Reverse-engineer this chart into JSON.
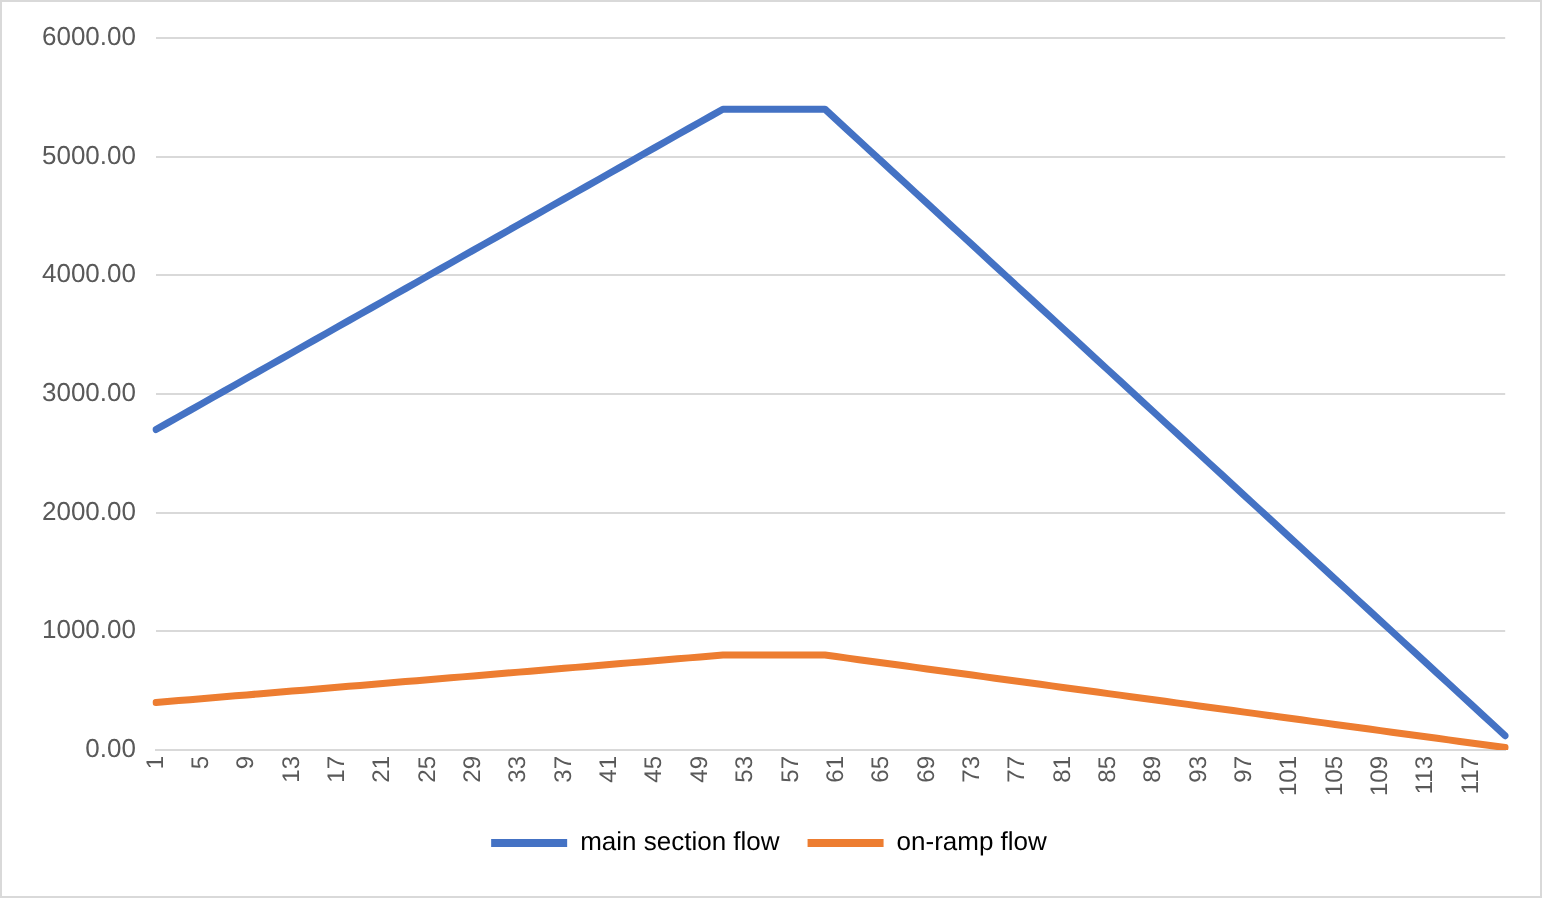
{
  "chart_data": {
    "type": "line",
    "categories": [
      "1",
      null,
      null,
      null,
      "5",
      null,
      null,
      null,
      "9",
      null,
      null,
      null,
      "13",
      null,
      null,
      null,
      "17",
      null,
      null,
      null,
      "21",
      null,
      null,
      null,
      "25",
      null,
      null,
      null,
      "29",
      null,
      null,
      null,
      "33",
      null,
      null,
      null,
      "37",
      null,
      null,
      null,
      "41",
      null,
      null,
      null,
      "45",
      null,
      null,
      null,
      "49",
      null,
      null,
      null,
      "53",
      null,
      null,
      null,
      "57",
      null,
      null,
      null,
      "61",
      null,
      null,
      null,
      "65",
      null,
      null,
      null,
      "69",
      null,
      null,
      null,
      "73",
      null,
      null,
      null,
      "77",
      null,
      null,
      null,
      "81",
      null,
      null,
      null,
      "85",
      null,
      null,
      null,
      "89",
      null,
      null,
      null,
      "93",
      null,
      null,
      null,
      "97",
      null,
      null,
      null,
      "101",
      null,
      null,
      null,
      "105",
      null,
      null,
      null,
      "109",
      null,
      null,
      null,
      "113",
      null,
      null,
      null,
      "117",
      null,
      null,
      null
    ],
    "series": [
      {
        "name": "main section flow",
        "color": "#4472c4",
        "values": [
          2700,
          2754,
          2808,
          2862,
          2916,
          2970,
          3024,
          3078,
          3132,
          3186,
          3240,
          3294,
          3348,
          3402,
          3456,
          3510,
          3564,
          3618,
          3672,
          3726,
          3780,
          3834,
          3888,
          3942,
          3996,
          4050,
          4104,
          4158,
          4212,
          4266,
          4320,
          4374,
          4428,
          4482,
          4536,
          4590,
          4644,
          4698,
          4752,
          4806,
          4860,
          4914,
          4968,
          5022,
          5076,
          5130,
          5184,
          5238,
          5292,
          5346,
          5400,
          5400,
          5400,
          5400,
          5400,
          5400,
          5400,
          5400,
          5400,
          5400,
          5312,
          5224,
          5136,
          5048,
          4960,
          4872,
          4784,
          4696,
          4608,
          4520,
          4432,
          4344,
          4256,
          4168,
          4080,
          3992,
          3904,
          3816,
          3728,
          3640,
          3552,
          3464,
          3376,
          3288,
          3200,
          3112,
          3024,
          2936,
          2848,
          2760,
          2672,
          2584,
          2496,
          2408,
          2320,
          2232,
          2144,
          2056,
          1968,
          1880,
          1792,
          1704,
          1616,
          1528,
          1440,
          1352,
          1264,
          1176,
          1088,
          1000,
          912,
          824,
          736,
          648,
          560,
          472,
          384,
          296,
          208,
          120
        ]
      },
      {
        "name": "on-ramp flow",
        "color": "#ed7d31",
        "values": [
          400,
          408,
          416,
          424,
          432,
          440,
          448,
          456,
          464,
          472,
          480,
          488,
          496,
          504,
          512,
          520,
          528,
          536,
          544,
          552,
          560,
          568,
          576,
          584,
          592,
          600,
          608,
          616,
          624,
          632,
          640,
          648,
          656,
          664,
          672,
          680,
          688,
          696,
          704,
          712,
          720,
          728,
          736,
          744,
          752,
          760,
          768,
          776,
          784,
          792,
          800,
          800,
          800,
          800,
          800,
          800,
          800,
          800,
          800,
          800,
          787,
          774,
          761,
          748,
          735,
          722,
          709,
          696,
          683,
          670,
          657,
          644,
          631,
          618,
          605,
          592,
          579,
          566,
          553,
          540,
          527,
          514,
          501,
          488,
          475,
          462,
          449,
          436,
          423,
          410,
          397,
          384,
          371,
          358,
          345,
          332,
          319,
          306,
          293,
          280,
          267,
          254,
          241,
          228,
          215,
          202,
          189,
          176,
          163,
          150,
          137,
          124,
          111,
          98,
          85,
          72,
          59,
          46,
          33,
          20
        ]
      }
    ],
    "ylim": [
      0,
      6000
    ],
    "yticks": [
      {
        "value": 0,
        "label": "0.00"
      },
      {
        "value": 1000,
        "label": "1000.00"
      },
      {
        "value": 2000,
        "label": "2000.00"
      },
      {
        "value": 3000,
        "label": "3000.00"
      },
      {
        "value": 4000,
        "label": "4000.00"
      },
      {
        "value": 5000,
        "label": "5000.00"
      },
      {
        "value": 6000,
        "label": "6000.00"
      }
    ],
    "grid": "y",
    "legend": "bottom",
    "marker": "none",
    "line_style": "solid"
  }
}
